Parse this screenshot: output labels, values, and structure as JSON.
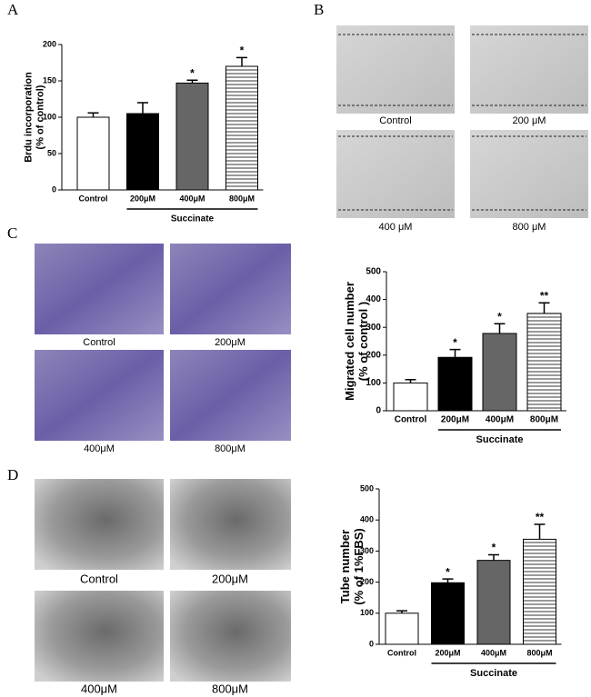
{
  "panel_labels": [
    "A",
    "B",
    "C",
    "D"
  ],
  "images": {
    "B": [
      "Control",
      "200 μM",
      "400 μM",
      "800 μM"
    ],
    "C": [
      "Control",
      "200μM",
      "400μM",
      "800μM"
    ],
    "D": [
      "Control",
      "200μM",
      "400μM",
      "800μM"
    ]
  },
  "chart_data": [
    {
      "type": "bar",
      "ylabel": [
        "Brdu incorporation",
        "(% of control)"
      ],
      "categories": [
        "Control",
        "200μM",
        "400μM",
        "800μM"
      ],
      "values": [
        100,
        105,
        147,
        170
      ],
      "errors": [
        6,
        15,
        4,
        12
      ],
      "annotations": [
        null,
        null,
        "*",
        "*"
      ],
      "colors": [
        "#ffffff",
        "#000000",
        "#666666",
        "#ffffff"
      ],
      "hatch": [
        false,
        false,
        false,
        true
      ],
      "group_label": "Succinate",
      "ylim": [
        0,
        200
      ],
      "yticks": [
        0,
        50,
        100,
        150,
        200
      ]
    },
    {
      "type": "bar",
      "ylabel": [
        "Migrated cell number",
        "(% of control )"
      ],
      "categories": [
        "Control",
        "200μM",
        "400μM",
        "800μM"
      ],
      "values": [
        100,
        192,
        278,
        350
      ],
      "errors": [
        12,
        28,
        35,
        38
      ],
      "annotations": [
        null,
        "*",
        "*",
        "**"
      ],
      "colors": [
        "#ffffff",
        "#000000",
        "#666666",
        "#ffffff"
      ],
      "hatch": [
        false,
        false,
        false,
        true
      ],
      "group_label": "Succinate",
      "ylim": [
        0,
        500
      ],
      "yticks": [
        0,
        100,
        200,
        300,
        400,
        500
      ]
    },
    {
      "type": "bar",
      "ylabel": [
        "Tube number",
        "(% of 1%FBS)"
      ],
      "categories": [
        "Control",
        "200μM",
        "400μM",
        "800μM"
      ],
      "values": [
        100,
        198,
        270,
        338
      ],
      "errors": [
        8,
        12,
        18,
        48
      ],
      "annotations": [
        null,
        "*",
        "*",
        "**"
      ],
      "colors": [
        "#ffffff",
        "#000000",
        "#666666",
        "#ffffff"
      ],
      "hatch": [
        false,
        false,
        false,
        true
      ],
      "group_label": "Succinate",
      "ylim": [
        0,
        500
      ],
      "yticks": [
        0,
        100,
        200,
        300,
        400,
        500
      ]
    }
  ]
}
